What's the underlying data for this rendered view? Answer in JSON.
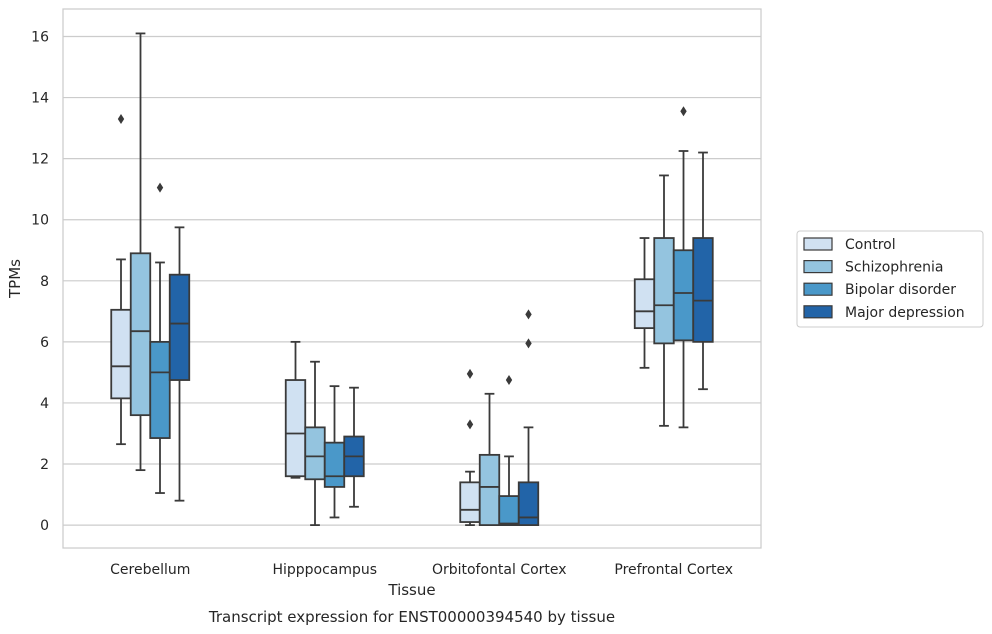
{
  "caption": "Transcript expression for ENST00000394540 by tissue",
  "chart_data": {
    "type": "boxplot",
    "xlabel": "Tissue",
    "ylabel": "TPMs",
    "ylim": [
      -0.75,
      16.9
    ],
    "yticks": [
      0,
      2,
      4,
      6,
      8,
      10,
      12,
      14,
      16
    ],
    "grid": "horizontal",
    "legend_placement": "right",
    "categories": [
      "Cerebellum",
      "Hipppocampus",
      "Orbitofontal Cortex",
      "Prefrontal Cortex"
    ],
    "series": [
      {
        "name": "Control",
        "color": "#d0e1f2",
        "boxes": [
          {
            "whislo": 2.65,
            "q1": 4.15,
            "med": 5.2,
            "q3": 7.05,
            "whishi": 8.7,
            "fliers": [
              13.3
            ]
          },
          {
            "whislo": 1.55,
            "q1": 1.6,
            "med": 3.0,
            "q3": 4.75,
            "whishi": 6.0,
            "fliers": []
          },
          {
            "whislo": 0.0,
            "q1": 0.1,
            "med": 0.5,
            "q3": 1.4,
            "whishi": 1.75,
            "fliers": [
              3.3,
              4.95
            ]
          },
          {
            "whislo": 5.15,
            "q1": 6.45,
            "med": 7.0,
            "q3": 8.05,
            "whishi": 9.4,
            "fliers": []
          }
        ]
      },
      {
        "name": "Schizophrenia",
        "color": "#94c4df",
        "boxes": [
          {
            "whislo": 1.8,
            "q1": 3.6,
            "med": 6.35,
            "q3": 8.9,
            "whishi": 16.1,
            "fliers": []
          },
          {
            "whislo": 0.0,
            "q1": 1.5,
            "med": 2.25,
            "q3": 3.2,
            "whishi": 5.35,
            "fliers": []
          },
          {
            "whislo": 0.0,
            "q1": 0.0,
            "med": 1.25,
            "q3": 2.3,
            "whishi": 4.3,
            "fliers": []
          },
          {
            "whislo": 3.25,
            "q1": 5.95,
            "med": 7.2,
            "q3": 9.4,
            "whishi": 11.45,
            "fliers": []
          }
        ]
      },
      {
        "name": "Bipolar disorder",
        "color": "#4a98c9",
        "boxes": [
          {
            "whislo": 1.05,
            "q1": 2.85,
            "med": 5.0,
            "q3": 6.0,
            "whishi": 8.6,
            "fliers": [
              11.05
            ]
          },
          {
            "whislo": 0.25,
            "q1": 1.25,
            "med": 1.6,
            "q3": 2.7,
            "whishi": 4.55,
            "fliers": []
          },
          {
            "whislo": 0.0,
            "q1": 0.0,
            "med": 0.05,
            "q3": 0.95,
            "whishi": 2.25,
            "fliers": [
              4.75
            ]
          },
          {
            "whislo": 3.2,
            "q1": 6.05,
            "med": 7.6,
            "q3": 9.0,
            "whishi": 12.25,
            "fliers": [
              13.55
            ]
          }
        ]
      },
      {
        "name": "Major depression",
        "color": "#2264a8",
        "boxes": [
          {
            "whislo": 0.8,
            "q1": 4.75,
            "med": 6.6,
            "q3": 8.2,
            "whishi": 9.75,
            "fliers": []
          },
          {
            "whislo": 0.6,
            "q1": 1.6,
            "med": 2.25,
            "q3": 2.9,
            "whishi": 4.5,
            "fliers": []
          },
          {
            "whislo": 0.0,
            "q1": 0.0,
            "med": 0.25,
            "q3": 1.4,
            "whishi": 3.2,
            "fliers": [
              5.95,
              6.9
            ]
          },
          {
            "whislo": 4.45,
            "q1": 6.0,
            "med": 7.35,
            "q3": 9.4,
            "whishi": 12.2,
            "fliers": []
          }
        ]
      }
    ]
  }
}
